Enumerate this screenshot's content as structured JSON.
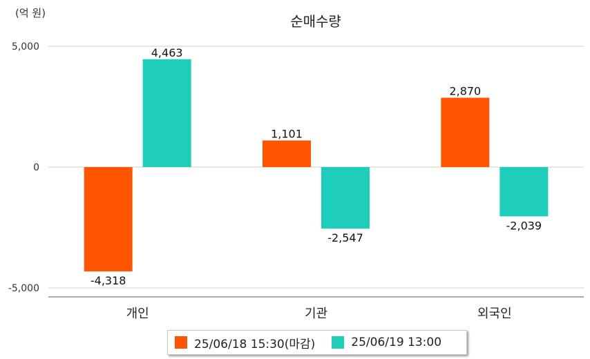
{
  "unit_label": "(억 원)",
  "chart_data": {
    "type": "bar",
    "title": "순매수량",
    "categories": [
      "개인",
      "기관",
      "외국인"
    ],
    "series": [
      {
        "name": "25/06/18 15:30(마감)",
        "color": "#ff5400",
        "values": [
          -4318,
          1101,
          2870
        ],
        "labels": [
          "-4,318",
          "1,101",
          "2,870"
        ]
      },
      {
        "name": "25/06/19 13:00",
        "color": "#1ecebb",
        "values": [
          4463,
          -2547,
          -2039
        ],
        "labels": [
          "4,463",
          "-2,547",
          "-2,039"
        ]
      }
    ],
    "yticks": [
      5000,
      0,
      -5000
    ],
    "ytick_labels": [
      "5,000",
      "0",
      "-5,000"
    ],
    "ylim": [
      -5000,
      5000
    ],
    "grid": true,
    "legend": "bottom"
  }
}
